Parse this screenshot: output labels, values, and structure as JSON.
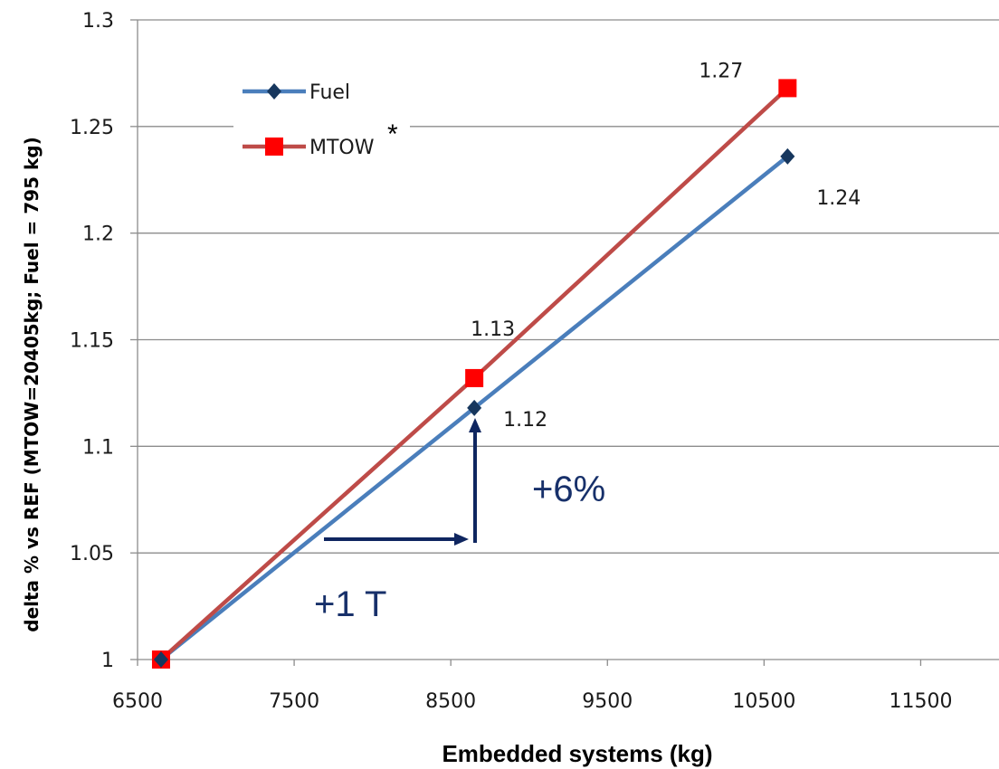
{
  "chart_data": {
    "type": "line",
    "title": "",
    "xlabel": "Embedded systems (kg)",
    "ylabel": "delta % vs REF (MTOW=20405kg; Fuel = 795 kg)",
    "xlim": [
      6500,
      12000
    ],
    "ylim": [
      1.0,
      1.3
    ],
    "x_ticks": [
      "6500",
      "7500",
      "8500",
      "9500",
      "10500",
      "11500"
    ],
    "y_ticks": [
      "1",
      "1.05",
      "1.1",
      "1.15",
      "1.2",
      "1.25",
      "1.3"
    ],
    "grid": "horizontal",
    "legend_position": "top-left",
    "series": [
      {
        "name": "Fuel",
        "color": "#4a7ebb",
        "marker": "diamond",
        "marker_color": "#17375e",
        "x": [
          6650,
          8650,
          10650
        ],
        "y": [
          1.0,
          1.118,
          1.236
        ],
        "labels": [
          "",
          "1.12",
          "1.24"
        ]
      },
      {
        "name": "MTOW",
        "color": "#be4b48",
        "marker": "square",
        "marker_color": "#ff0000",
        "x": [
          6650,
          8650,
          10650
        ],
        "y": [
          1.0,
          1.132,
          1.268
        ],
        "labels": [
          "",
          "1.13",
          "1.27"
        ]
      }
    ],
    "legend_asterisk": "*",
    "annotations": [
      {
        "text": "+1 T",
        "color": "#17306a"
      },
      {
        "text": "+6%",
        "color": "#17306a"
      }
    ],
    "arrow_color": "#0f2660"
  }
}
